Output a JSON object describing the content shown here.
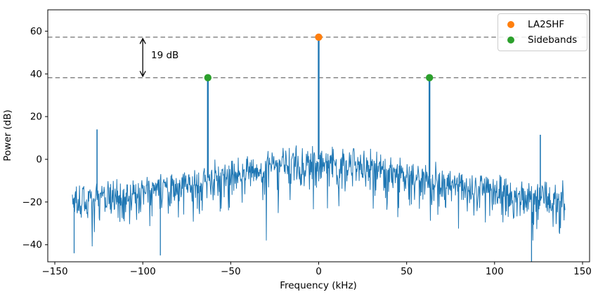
{
  "chart_data": {
    "type": "line",
    "title": "",
    "xlabel": "Frequency (kHz)",
    "ylabel": "Power (dB)",
    "xlim": [
      -154,
      154
    ],
    "ylim": [
      -48,
      70
    ],
    "xticks": [
      -150,
      -100,
      -50,
      0,
      50,
      100,
      150
    ],
    "yticks": [
      60,
      40,
      20,
      0,
      -20,
      -40
    ],
    "xtick_labels": [
      "−150",
      "−100",
      "−50",
      "0",
      "50",
      "100",
      "150"
    ],
    "ytick_labels": [
      "60",
      "40",
      "20",
      "0",
      "−20",
      "−40"
    ],
    "freq_range_khz": [
      -140,
      140
    ],
    "line_color": "#1f77b4",
    "ref_line_color": "#7f7f7f",
    "grid": false,
    "peaks": [
      {
        "name": "LA2SHF",
        "freq_khz": 0,
        "power_db": 57.2,
        "marker_color": "#ff7f0e"
      },
      {
        "name": "Sideband",
        "freq_khz": -63,
        "power_db": 38.2,
        "marker_color": "#2ca02c"
      },
      {
        "name": "Sideband",
        "freq_khz": 63,
        "power_db": 38.2,
        "marker_color": "#2ca02c"
      }
    ],
    "spurs": [
      {
        "freq_khz": -126,
        "power_db": 14
      },
      {
        "freq_khz": 126,
        "power_db": 11.5
      }
    ],
    "nulls": [
      {
        "freq_khz": -139,
        "power_db": -44
      },
      {
        "freq_khz": -90,
        "power_db": -45
      },
      {
        "freq_khz": 121,
        "power_db": -48
      }
    ],
    "ref_lines": [
      {
        "power_db": 57.2
      },
      {
        "power_db": 38.2
      }
    ],
    "annotation": {
      "label": "19 dB",
      "delta_db": 19,
      "arrow_freq_khz": -100,
      "from_db": 57.2,
      "to_db": 38.2
    },
    "legend": {
      "position": "upper right",
      "entries": [
        {
          "label": "LA2SHF",
          "color": "#ff7f0e"
        },
        {
          "label": "Sidebands",
          "color": "#2ca02c"
        }
      ]
    },
    "noise": {
      "seed": 20,
      "step_khz": 0.25,
      "envelope_db": [
        [
          -140,
          -18
        ],
        [
          -126,
          -17
        ],
        [
          -110,
          -15.5
        ],
        [
          -95,
          -14
        ],
        [
          -80,
          -11.5
        ],
        [
          -65,
          -9
        ],
        [
          -50,
          -6
        ],
        [
          -35,
          -3.5
        ],
        [
          -20,
          -1.5
        ],
        [
          -5,
          0
        ],
        [
          5,
          0
        ],
        [
          20,
          -1.5
        ],
        [
          35,
          -3.5
        ],
        [
          50,
          -6
        ],
        [
          65,
          -9
        ],
        [
          80,
          -11
        ],
        [
          95,
          -13
        ],
        [
          110,
          -14.5
        ],
        [
          126,
          -16
        ],
        [
          140,
          -17.5
        ]
      ]
    }
  }
}
